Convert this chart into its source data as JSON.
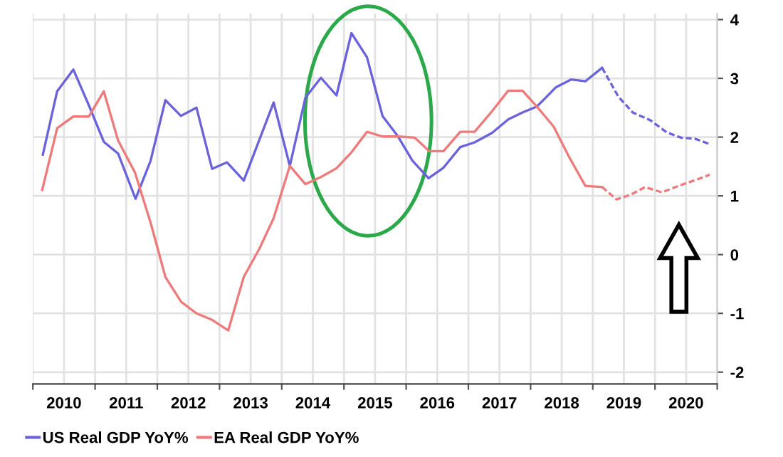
{
  "chart_data": {
    "type": "line",
    "series": [
      {
        "name": "US Real GDP YoY%",
        "color": "#6a63dc",
        "line_style": "solid",
        "x": [
          2010.16,
          2010.39,
          2010.65,
          2010.9,
          2011.14,
          2011.37,
          2011.65,
          2011.89,
          2012.13,
          2012.38,
          2012.63,
          2012.88,
          2013.12,
          2013.39,
          2013.87,
          2014.13,
          2014.38,
          2014.63,
          2014.88,
          2015.12,
          2015.37,
          2015.62,
          2015.87,
          2016.1,
          2016.36,
          2016.6,
          2016.87,
          2017.1,
          2017.38,
          2017.64,
          2017.87,
          2018.1,
          2018.41,
          2018.65,
          2018.88,
          2019.15
        ],
        "values": [
          1.7,
          2.78,
          3.15,
          2.54,
          1.92,
          1.72,
          0.95,
          1.59,
          2.63,
          2.36,
          2.5,
          1.46,
          1.57,
          1.26,
          2.59,
          1.51,
          2.67,
          3.01,
          2.71,
          3.77,
          3.36,
          2.36,
          2.01,
          1.6,
          1.3,
          1.48,
          1.83,
          1.91,
          2.07,
          2.3,
          2.42,
          2.52,
          2.85,
          2.98,
          2.95,
          3.18
        ]
      },
      {
        "name": "EA Real GDP YoY%",
        "color": "#ee7b7b",
        "line_style": "solid",
        "x": [
          2010.15,
          2010.39,
          2010.65,
          2010.9,
          2011.14,
          2011.37,
          2011.64,
          2011.89,
          2012.13,
          2012.38,
          2012.63,
          2012.88,
          2013.14,
          2013.39,
          2013.64,
          2013.87,
          2014.13,
          2014.38,
          2014.63,
          2014.88,
          2015.12,
          2015.37,
          2015.62,
          2015.87,
          2016.14,
          2016.37,
          2016.6,
          2016.87,
          2017.1,
          2017.38,
          2017.64,
          2017.87,
          2018.1,
          2018.37,
          2018.61,
          2018.88,
          2019.15
        ],
        "values": [
          1.1,
          2.15,
          2.35,
          2.35,
          2.78,
          1.94,
          1.4,
          0.55,
          -0.38,
          -0.8,
          -1.0,
          -1.11,
          -1.29,
          -0.38,
          0.1,
          0.62,
          1.51,
          1.2,
          1.32,
          1.47,
          1.74,
          2.09,
          2.01,
          2.01,
          1.99,
          1.76,
          1.76,
          2.09,
          2.09,
          2.44,
          2.79,
          2.79,
          2.52,
          2.18,
          1.68,
          1.17,
          1.15
        ]
      },
      {
        "color": "#6a63dc",
        "line_style": "dashed",
        "x": [
          2019.15,
          2019.41,
          2019.64,
          2019.92,
          2020.19,
          2020.42,
          2020.65,
          2020.88
        ],
        "values": [
          3.18,
          2.69,
          2.42,
          2.29,
          2.08,
          1.99,
          1.97,
          1.88
        ]
      },
      {
        "color": "#ee7b7b",
        "line_style": "dashed",
        "x": [
          2019.15,
          2019.38,
          2019.61,
          2019.84,
          2020.11,
          2020.38,
          2020.65,
          2020.88
        ],
        "values": [
          1.15,
          0.94,
          1.02,
          1.15,
          1.06,
          1.17,
          1.27,
          1.36
        ]
      }
    ],
    "xlim": [
      2010,
      2021
    ],
    "xticks": [
      {
        "value": 2010,
        "label": null
      },
      {
        "value": 2011,
        "label": null
      },
      {
        "value": 2012,
        "label": null
      },
      {
        "value": 2013,
        "label": null
      },
      {
        "value": 2014,
        "label": null
      },
      {
        "value": 2015,
        "label": null
      },
      {
        "value": 2016,
        "label": null
      },
      {
        "value": 2017,
        "label": null
      },
      {
        "value": 2018,
        "label": null
      },
      {
        "value": 2019,
        "label": null
      },
      {
        "value": 2020,
        "label": null
      },
      {
        "value": 2021,
        "label": null
      },
      {
        "value": 2010.5,
        "label": "2010"
      },
      {
        "value": 2011.5,
        "label": "2011"
      },
      {
        "value": 2012.5,
        "label": "2012"
      },
      {
        "value": 2013.5,
        "label": "2013"
      },
      {
        "value": 2014.5,
        "label": "2014"
      },
      {
        "value": 2015.5,
        "label": "2015"
      },
      {
        "value": 2016.5,
        "label": "2016"
      },
      {
        "value": 2017.5,
        "label": "2017"
      },
      {
        "value": 2018.5,
        "label": "2018"
      },
      {
        "value": 2019.5,
        "label": "2019"
      },
      {
        "value": 2020.5,
        "label": "2020"
      }
    ],
    "ylim": [
      -2.2,
      4.1
    ],
    "yticks": [
      -2,
      -1,
      0,
      1,
      2,
      3,
      4
    ],
    "grid": true,
    "legend": "bottom left"
  }
}
